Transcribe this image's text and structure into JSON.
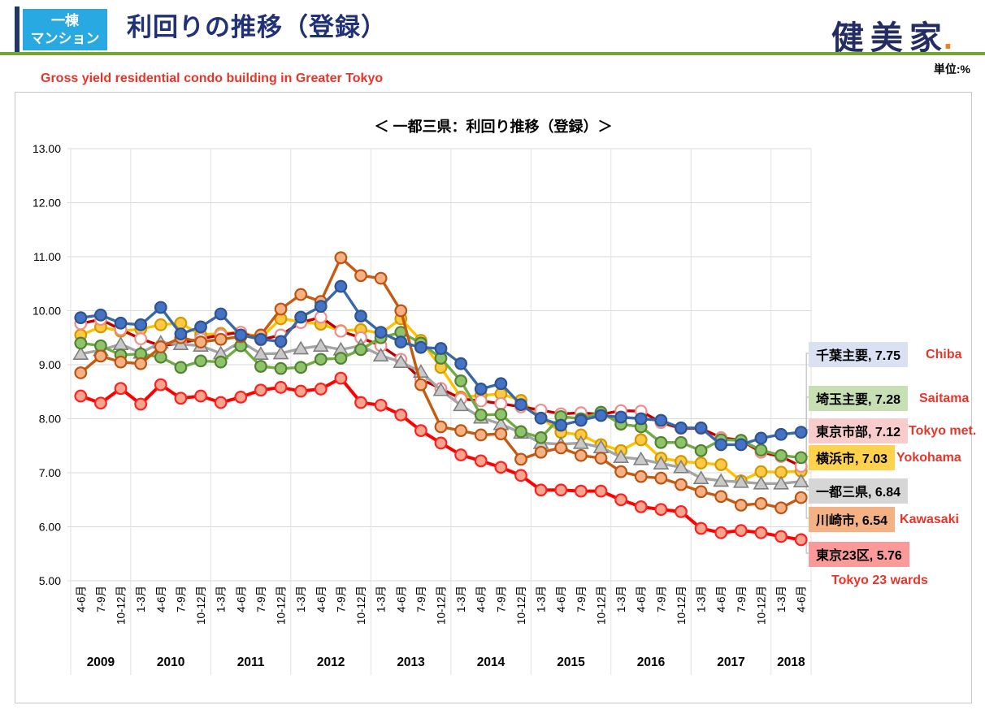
{
  "header": {
    "badge_line1": "一棟",
    "badge_line2": "マンション",
    "title": "利回りの推移（登録）",
    "logo": "健美家",
    "logo_dot": ".",
    "unit_label": "単位:%",
    "subtitle_en": "Gross yield residential condo building in Greater Tokyo"
  },
  "colors": {
    "header_accent": "#1F3864",
    "badge_bg": "#29A9E1",
    "title_navy": "#203176",
    "logo_navy": "#232D63",
    "logo_dot_orange": "#F3801F",
    "green_rule": "#74A433",
    "subtitle_red": "#E8352A",
    "gridline": "#D9D9D9",
    "separator": "#E2E2E2",
    "leader_line": "#BFBFBF",
    "chart_border": "#C8C8C8"
  },
  "chart_data": {
    "type": "line",
    "title": "＜ 一都三県：利回り推移（登録）＞",
    "ylabel": "単位:%",
    "ylim": [
      5.0,
      13.0
    ],
    "ytick_step": 1.0,
    "grid": "horizontal-light",
    "legend_position": "right-of-last-point",
    "years": [
      {
        "label": "2009",
        "quarters": [
          "4-6月",
          "7-9月",
          "10-12月"
        ]
      },
      {
        "label": "2010",
        "quarters": [
          "1-3月",
          "4-6月",
          "7-9月",
          "10-12月"
        ]
      },
      {
        "label": "2011",
        "quarters": [
          "1-3月",
          "4-6月",
          "7-9月",
          "10-12月"
        ]
      },
      {
        "label": "2012",
        "quarters": [
          "1-3月",
          "4-6月",
          "7-9月",
          "10-12月"
        ]
      },
      {
        "label": "2013",
        "quarters": [
          "1-3月",
          "4-6月",
          "7-9月",
          "10-12月"
        ]
      },
      {
        "label": "2014",
        "quarters": [
          "1-3月",
          "4-6月",
          "7-9月",
          "10-12月"
        ]
      },
      {
        "label": "2015",
        "quarters": [
          "1-3月",
          "4-6月",
          "7-9月",
          "10-12月"
        ]
      },
      {
        "label": "2016",
        "quarters": [
          "1-3月",
          "4-6月",
          "7-9月",
          "10-12月"
        ]
      },
      {
        "label": "2017",
        "quarters": [
          "1-3月",
          "4-6月",
          "7-9月",
          "10-12月"
        ]
      },
      {
        "label": "2018",
        "quarters": [
          "1-3月",
          "4-6月"
        ]
      }
    ],
    "series": [
      {
        "key": "chiba",
        "name": "千葉主要",
        "legend_label": "千葉主要, 7.75",
        "annotation_en": "Chiba",
        "final": 7.75,
        "line_color": "#3A68A6",
        "marker": "circle",
        "marker_fill": "#4472C4",
        "marker_stroke": "#2F538C",
        "chip_bg": "#D9E1F2",
        "values": [
          9.87,
          9.92,
          9.77,
          9.74,
          10.06,
          9.57,
          9.7,
          9.94,
          9.55,
          9.47,
          9.43,
          9.88,
          10.08,
          10.45,
          9.9,
          9.6,
          9.42,
          9.32,
          9.3,
          9.02,
          8.55,
          8.65,
          8.26,
          8.01,
          7.88,
          7.97,
          8.06,
          8.03,
          8.0,
          7.97,
          7.83,
          7.83,
          7.52,
          7.52,
          7.64,
          7.71,
          7.75
        ]
      },
      {
        "key": "saitama",
        "name": "埼玉主要",
        "legend_label": "埼玉主要, 7.28",
        "annotation_en": "Saitama",
        "final": 7.28,
        "line_color": "#6FAC45",
        "marker": "circle",
        "marker_fill": "#8FC36A",
        "marker_stroke": "#548235",
        "chip_bg": "#C6E0B4",
        "values": [
          9.4,
          9.35,
          9.18,
          9.2,
          9.14,
          8.95,
          9.07,
          9.05,
          9.35,
          8.97,
          8.93,
          8.95,
          9.1,
          9.12,
          9.28,
          9.5,
          9.6,
          9.4,
          9.12,
          8.7,
          8.07,
          8.08,
          7.76,
          7.65,
          8.04,
          8.0,
          8.12,
          7.9,
          7.85,
          7.56,
          7.56,
          7.41,
          7.61,
          7.6,
          7.42,
          7.32,
          7.28
        ]
      },
      {
        "key": "tokyo-met",
        "name": "東京市部",
        "legend_label": "東京市部, 7.12",
        "annotation_en": "Tokyo met.",
        "final": 7.12,
        "line_color": "#C00000",
        "marker": "circle",
        "marker_fill": "#FFFFFF",
        "marker_stroke": "#F08C8C",
        "chip_bg": "#F9CCCC",
        "values": [
          9.76,
          9.84,
          9.65,
          9.48,
          9.35,
          9.4,
          9.48,
          9.55,
          9.6,
          9.46,
          9.55,
          9.78,
          9.88,
          9.62,
          9.5,
          9.35,
          9.1,
          8.73,
          8.56,
          8.37,
          8.33,
          8.28,
          8.22,
          8.16,
          8.09,
          8.11,
          8.08,
          8.15,
          8.14,
          7.93,
          7.82,
          7.82,
          7.65,
          7.6,
          7.38,
          7.3,
          7.12
        ]
      },
      {
        "key": "yokohama",
        "name": "横浜市",
        "legend_label": "横浜市, 7.03",
        "annotation_en": "Yokohama",
        "final": 7.03,
        "line_color": "#FFC000",
        "marker": "circle",
        "marker_fill": "#FFC845",
        "marker_stroke": "#D09A00",
        "chip_bg": "#FFD24D",
        "values": [
          9.55,
          9.7,
          9.62,
          9.66,
          9.74,
          9.77,
          9.55,
          9.58,
          9.6,
          9.5,
          9.85,
          9.8,
          9.75,
          9.63,
          9.65,
          9.58,
          9.85,
          9.45,
          8.95,
          8.4,
          8.43,
          8.46,
          8.34,
          8.02,
          7.75,
          7.7,
          7.52,
          7.41,
          7.61,
          7.27,
          7.21,
          7.18,
          7.15,
          6.85,
          7.02,
          7.01,
          7.03
        ]
      },
      {
        "key": "ittosanken",
        "name": "一都三県",
        "legend_label": "一都三県, 6.84",
        "annotation_en": "",
        "final": 6.84,
        "line_color": "#A5A5A5",
        "marker": "triangle",
        "marker_fill": "#C9C9C9",
        "marker_stroke": "#7F7F7F",
        "chip_bg": "#D6D6D6",
        "values": [
          9.2,
          9.27,
          9.38,
          9.22,
          9.41,
          9.38,
          9.35,
          9.21,
          9.43,
          9.2,
          9.21,
          9.3,
          9.35,
          9.28,
          9.35,
          9.17,
          9.05,
          8.87,
          8.53,
          8.25,
          8.02,
          7.9,
          7.74,
          7.55,
          7.53,
          7.55,
          7.47,
          7.29,
          7.25,
          7.17,
          7.1,
          6.9,
          6.85,
          6.83,
          6.8,
          6.8,
          6.84
        ]
      },
      {
        "key": "kawasaki",
        "name": "川崎市",
        "legend_label": "川崎市, 6.54",
        "annotation_en": "Kawasaki",
        "final": 6.54,
        "line_color": "#C55A11",
        "marker": "circle",
        "marker_fill": "#F4B183",
        "marker_stroke": "#BC5310",
        "chip_bg": "#F4B183",
        "values": [
          8.85,
          9.16,
          9.05,
          9.02,
          9.33,
          9.5,
          9.42,
          9.47,
          9.52,
          9.55,
          10.03,
          10.3,
          10.17,
          10.98,
          10.65,
          10.6,
          10.0,
          8.63,
          7.85,
          7.78,
          7.7,
          7.72,
          7.25,
          7.38,
          7.46,
          7.32,
          7.27,
          7.02,
          6.93,
          6.9,
          6.78,
          6.65,
          6.56,
          6.4,
          6.43,
          6.35,
          6.54
        ]
      },
      {
        "key": "tokyo-23-wards",
        "name": "東京23区",
        "legend_label": "東京23区, 5.76",
        "annotation_en": "Tokyo 23 wards",
        "final": 5.76,
        "line_color": "#FF0000",
        "marker": "circle",
        "marker_fill": "#F6A48E",
        "marker_stroke": "#FF1F1F",
        "chip_bg": "#FC9A9A",
        "values": [
          8.42,
          8.29,
          8.56,
          8.27,
          8.63,
          8.38,
          8.42,
          8.3,
          8.4,
          8.53,
          8.58,
          8.51,
          8.55,
          8.75,
          8.3,
          8.25,
          8.07,
          7.78,
          7.55,
          7.33,
          7.22,
          7.1,
          6.95,
          6.68,
          6.68,
          6.66,
          6.66,
          6.5,
          6.37,
          6.32,
          6.28,
          5.97,
          5.89,
          5.93,
          5.89,
          5.82,
          5.76
        ]
      }
    ]
  }
}
